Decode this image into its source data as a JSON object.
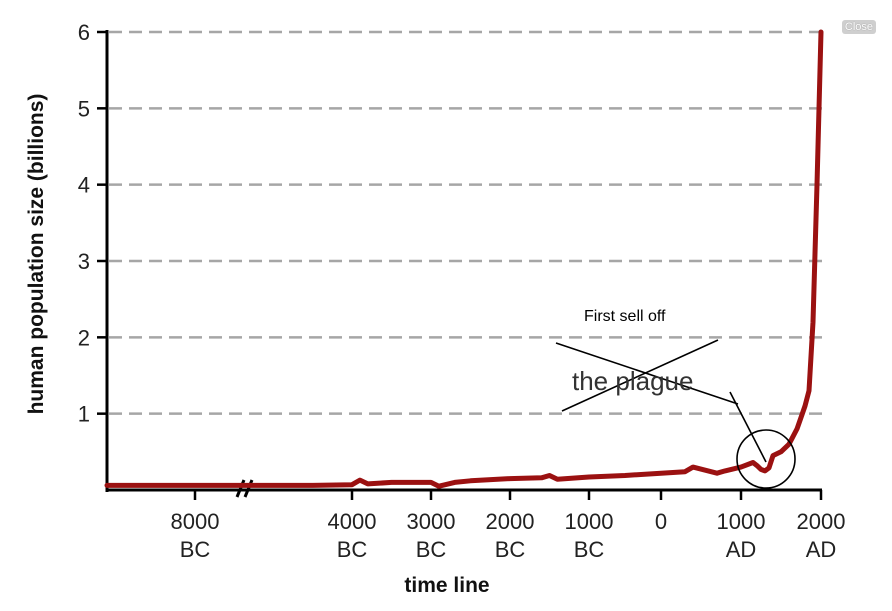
{
  "close_label": "Close",
  "annotations": {
    "first_sell_off": "First sell off",
    "plague": "the plague"
  },
  "chart_data": {
    "type": "line",
    "title": "",
    "xlabel": "time line",
    "ylabel": "human population size (billions)",
    "ylim": [
      0,
      6
    ],
    "y_ticks": [
      "1",
      "2",
      "3",
      "4",
      "5",
      "6"
    ],
    "x_ticks": [
      {
        "year": -8000,
        "line1": "8000",
        "line2": "BC"
      },
      {
        "year": -4000,
        "line1": "4000",
        "line2": "BC"
      },
      {
        "year": -3000,
        "line1": "3000",
        "line2": "BC"
      },
      {
        "year": -2000,
        "line1": "2000",
        "line2": "BC"
      },
      {
        "year": -1000,
        "line1": "1000",
        "line2": "BC"
      },
      {
        "year": 0,
        "line1": "0",
        "line2": ""
      },
      {
        "year": 1000,
        "line1": "1000",
        "line2": "AD"
      },
      {
        "year": 2000,
        "line1": "2000",
        "line2": "AD"
      }
    ],
    "grid": true,
    "line_color": "#9b1111",
    "series": [
      {
        "x": [
          -9000,
          -8000,
          -7000,
          -6000,
          -5000,
          -4000,
          -3900,
          -3800,
          -3500,
          -3000,
          -2900,
          -2700,
          -2500,
          -2000,
          -1600,
          -1500,
          -1400,
          -1000,
          -500,
          0,
          300,
          400,
          700,
          800,
          1000,
          1150,
          1200,
          1250,
          1300,
          1350,
          1400,
          1500,
          1600,
          1700,
          1750,
          1800,
          1850,
          1900,
          1950,
          2000
        ],
        "y": [
          0.06,
          0.06,
          0.06,
          0.06,
          0.06,
          0.07,
          0.13,
          0.08,
          0.1,
          0.1,
          0.05,
          0.1,
          0.12,
          0.15,
          0.16,
          0.19,
          0.14,
          0.17,
          0.19,
          0.22,
          0.24,
          0.3,
          0.22,
          0.25,
          0.3,
          0.36,
          0.32,
          0.27,
          0.25,
          0.29,
          0.45,
          0.5,
          0.6,
          0.8,
          0.95,
          1.1,
          1.3,
          2.2,
          4.0,
          6.0
        ]
      }
    ]
  }
}
